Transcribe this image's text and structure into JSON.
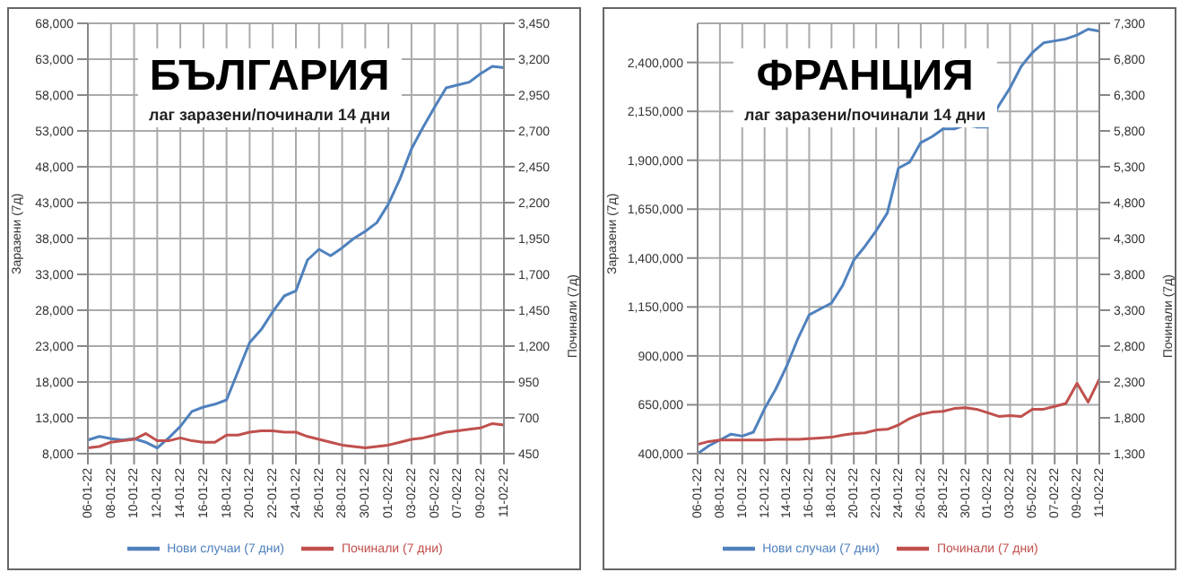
{
  "chart_data": [
    {
      "type": "line",
      "title": "БЪЛГАРИЯ",
      "subtitle": "лаг заразени/починали 14 дни",
      "ylabel": "Заразени (7д)",
      "y2label": "Починали (7д)",
      "categories": [
        "06-01-22",
        null,
        "08-01-22",
        null,
        "10-01-22",
        null,
        "12-01-22",
        null,
        "14-01-22",
        null,
        "16-01-22",
        null,
        "18-01-22",
        null,
        "20-01-22",
        null,
        "22-01-22",
        null,
        "24-01-22",
        null,
        "26-01-22",
        null,
        "28-01-22",
        null,
        "30-01-22",
        null,
        "01-02-22",
        null,
        "03-02-22",
        null,
        "05-02-22",
        null,
        "07-02-22",
        null,
        "09-02-22",
        null,
        "11-02-22"
      ],
      "series": [
        {
          "name": "Нови случаи (7 дни)",
          "color": "#4f81bd",
          "values": [
            9900,
            10400,
            10100,
            9900,
            10100,
            9600,
            8800,
            10200,
            11800,
            13900,
            14500,
            14900,
            15500,
            19500,
            23500,
            25300,
            27800,
            30000,
            30700,
            35000,
            36500,
            35600,
            36700,
            38000,
            39000,
            40200,
            42800,
            46300,
            50500,
            53500,
            56300,
            59000,
            59400,
            59800,
            61000,
            62000,
            61800
          ]
        },
        {
          "name": "Починали (7 дни)",
          "color": "#c0504d",
          "axis": "y2",
          "values": [
            490,
            500,
            530,
            540,
            550,
            590,
            540,
            540,
            560,
            540,
            530,
            530,
            580,
            580,
            600,
            610,
            610,
            600,
            600,
            570,
            550,
            530,
            510,
            500,
            490,
            500,
            510,
            530,
            550,
            560,
            580,
            600,
            610,
            620,
            630,
            660,
            650
          ]
        }
      ],
      "ylim": [
        8000,
        68000
      ],
      "yticks": [
        {
          "value": 8000,
          "label": "8,000"
        },
        {
          "value": 13000,
          "label": "13,000"
        },
        {
          "value": 18000,
          "label": "18,000"
        },
        {
          "value": 23000,
          "label": "23,000"
        },
        {
          "value": 28000,
          "label": "28,000"
        },
        {
          "value": 33000,
          "label": "33,000"
        },
        {
          "value": 38000,
          "label": "38,000"
        },
        {
          "value": 43000,
          "label": "43,000"
        },
        {
          "value": 48000,
          "label": "48,000"
        },
        {
          "value": 53000,
          "label": "53,000"
        },
        {
          "value": 58000,
          "label": "58,000"
        },
        {
          "value": 63000,
          "label": "63,000"
        },
        {
          "value": 68000,
          "label": "68,000"
        }
      ],
      "y2lim": [
        450,
        3450
      ],
      "y2ticks": [
        450,
        700,
        950,
        {
          "value": 1200,
          "label": "1,200"
        },
        {
          "value": 1450,
          "label": "1,450"
        },
        {
          "value": 1700,
          "label": "1,700"
        },
        {
          "value": 1950,
          "label": "1,950"
        },
        {
          "value": 2200,
          "label": "2,200"
        },
        {
          "value": 2450,
          "label": "2,450"
        },
        {
          "value": 2700,
          "label": "2,700"
        },
        {
          "value": 2950,
          "label": "2,950"
        },
        {
          "value": 3200,
          "label": "3,200"
        },
        {
          "value": 3450,
          "label": "3,450"
        }
      ],
      "grid": true,
      "legend": "bottom",
      "marker": "none"
    },
    {
      "type": "line",
      "title": "ФРАНЦИЯ",
      "subtitle": "лаг заразени/починали 14 дни",
      "ylabel": "Заразени (7д)",
      "y2label": "Починали (7д)",
      "categories": [
        "06-01-22",
        null,
        "08-01-22",
        null,
        "10-01-22",
        null,
        "12-01-22",
        null,
        "14-01-22",
        null,
        "16-01-22",
        null,
        "18-01-22",
        null,
        "20-01-22",
        null,
        "22-01-22",
        null,
        "24-01-22",
        null,
        "26-01-22",
        null,
        "28-01-22",
        null,
        "30-01-22",
        null,
        "01-02-22",
        null,
        "03-02-22",
        null,
        "05-02-22",
        null,
        "07-02-22",
        null,
        "09-02-22",
        null,
        "11-02-22"
      ],
      "series": [
        {
          "name": "Нови случаи (7 дни)",
          "color": "#4f81bd",
          "values": [
            400000,
            440000,
            470000,
            500000,
            490000,
            510000,
            630000,
            730000,
            850000,
            990000,
            1110000,
            1140000,
            1170000,
            1260000,
            1390000,
            1460000,
            1540000,
            1630000,
            1860000,
            1890000,
            1990000,
            2020000,
            2060000,
            2060000,
            2080000,
            2070000,
            2070000,
            2180000,
            2270000,
            2380000,
            2450000,
            2500000,
            2510000,
            2520000,
            2540000,
            2570000,
            2560000
          ]
        },
        {
          "name": "Починали (7 дни)",
          "color": "#c0504d",
          "axis": "y2",
          "values": [
            1430,
            1470,
            1490,
            1490,
            1490,
            1490,
            1490,
            1500,
            1500,
            1500,
            1510,
            1520,
            1530,
            1560,
            1580,
            1590,
            1630,
            1640,
            1700,
            1790,
            1850,
            1880,
            1890,
            1930,
            1940,
            1920,
            1870,
            1820,
            1830,
            1820,
            1920,
            1920,
            1960,
            2000,
            2280,
            2020,
            2340
          ]
        }
      ],
      "ylim": [
        400000,
        2600000
      ],
      "yticks": [
        {
          "value": 400000,
          "label": "400,000"
        },
        {
          "value": 650000,
          "label": "650,000"
        },
        {
          "value": 900000,
          "label": "900,000"
        },
        {
          "value": 1150000,
          "label": "1,150,000"
        },
        {
          "value": 1400000,
          "label": "1,400,000"
        },
        {
          "value": 1650000,
          "label": "1,650,000"
        },
        {
          "value": 1900000,
          "label": "1,900,000"
        },
        {
          "value": 2150000,
          "label": "2,150,000"
        },
        {
          "value": 2400000,
          "label": "2,400,000"
        }
      ],
      "y2lim": [
        1300,
        7300
      ],
      "y2ticks": [
        {
          "value": 1300,
          "label": "1,300"
        },
        {
          "value": 1800,
          "label": "1,800"
        },
        {
          "value": 2300,
          "label": "2,300"
        },
        {
          "value": 2800,
          "label": "2,800"
        },
        {
          "value": 3300,
          "label": "3,300"
        },
        {
          "value": 3800,
          "label": "3,800"
        },
        {
          "value": 4300,
          "label": "4,300"
        },
        {
          "value": 4800,
          "label": "4,800"
        },
        {
          "value": 5300,
          "label": "5,300"
        },
        {
          "value": 5800,
          "label": "5,800"
        },
        {
          "value": 6300,
          "label": "6,300"
        },
        {
          "value": 6800,
          "label": "6,800"
        },
        {
          "value": 7300,
          "label": "7,300"
        }
      ],
      "grid": true,
      "legend": "bottom",
      "marker": "none"
    }
  ]
}
